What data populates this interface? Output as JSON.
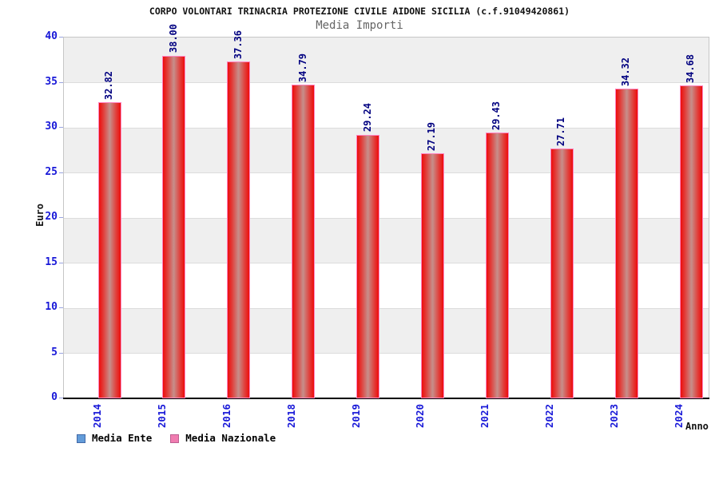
{
  "title": "CORPO VOLONTARI TRINACRIA PROTEZIONE CIVILE AIDONE SICILIA (c.f.91049420861)",
  "subtitle": "Media Importi",
  "legend": {
    "items": [
      {
        "label": "Media Ente",
        "color": "#639CD9",
        "border": "#4169A8"
      },
      {
        "label": "Media Nazionale",
        "color": "#F07CB0",
        "border": "#BC5F92"
      }
    ]
  },
  "chart_data": {
    "type": "bar",
    "title": "CORPO VOLONTARI TRINACRIA PROTEZIONE CIVILE AIDONE SICILIA (c.f.91049420861)",
    "subtitle": "Media Importi",
    "categories": [
      "2014",
      "2015",
      "2016",
      "2018",
      "2019",
      "2020",
      "2021",
      "2022",
      "2023",
      "2024"
    ],
    "series": [
      {
        "name": "Media Nazionale",
        "values": [
          32.82,
          38.0,
          37.36,
          34.79,
          29.24,
          27.19,
          29.43,
          27.71,
          34.32,
          34.68
        ]
      }
    ],
    "value_labels": [
      "32.82",
      "38.00",
      "37.36",
      "34.79",
      "29.24",
      "27.19",
      "29.43",
      "27.71",
      "34.32",
      "34.68"
    ],
    "xlabel": "Anno",
    "ylabel": "Euro",
    "ylim": [
      0,
      40
    ],
    "yticks": [
      0,
      5,
      10,
      15,
      20,
      25,
      30,
      35,
      40
    ],
    "grid": "horizontal-bands",
    "legend_position": "bottom-left",
    "colors": {
      "bar_fill": "#ed0c0c",
      "bar_border": "#ff85c2",
      "value_label": "#000080",
      "axis_tick_label": "#1818d8",
      "band_gray": "#efefef",
      "band_white": "#ffffff"
    }
  }
}
